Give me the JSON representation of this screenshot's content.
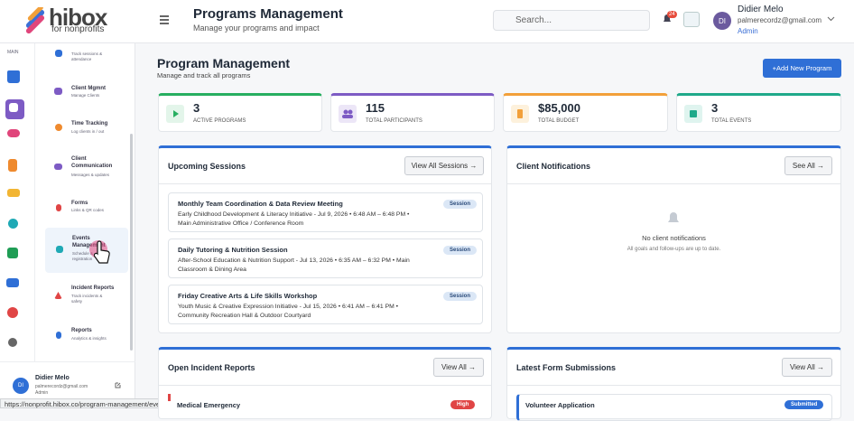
{
  "logo": {
    "name": "hibox",
    "tagline": "for nonprofits"
  },
  "header": {
    "title": "Programs Management",
    "subtitle": "Manage your programs and impact",
    "search_placeholder": "Search...",
    "notification_count": "24",
    "user": {
      "initials": "DI",
      "name": "Didier Melo",
      "email": "palmerecordz@gmail.com",
      "role": "Admin"
    }
  },
  "sidebar": {
    "section": "MAIN",
    "menu": [
      {
        "subtitle": "Track sessions & attendance"
      },
      {
        "title": "Client Mgmnt",
        "subtitle": "Manage Clients"
      },
      {
        "title": "Time Tracking",
        "subtitle": "Log clients in / out"
      },
      {
        "title": "Client Communication",
        "subtitle": "Messages & updates"
      },
      {
        "title": "Forms",
        "subtitle": "Links & QR codes"
      },
      {
        "title": "Events Management",
        "subtitle": "Schedule & registration"
      },
      {
        "title": "Incident Reports",
        "subtitle": "Track incidents & safety"
      },
      {
        "title": "Reports",
        "subtitle": "Analytics & insights"
      }
    ],
    "user": {
      "initials": "DI",
      "name": "Didier Melo",
      "email": "palmerecordz@gmail.com",
      "role": "Admin"
    }
  },
  "status_url": "https://nonprofit.hibox.co/program-management/events",
  "page": {
    "title": "Program Management",
    "subtitle": "Manage and track all programs",
    "add_button": "+Add New Program"
  },
  "stats": [
    {
      "value": 3,
      "label": "ACTIVE PROGRAMS"
    },
    {
      "value": 115,
      "label": "TOTAL PARTICIPANTS"
    },
    {
      "value": "$85,000",
      "label": "TOTAL BUDGET"
    },
    {
      "value": 3,
      "label": "TOTAL EVENTS"
    }
  ],
  "upcoming_sessions": {
    "title": "Upcoming Sessions",
    "button": "View All Sessions →",
    "sessions": [
      {
        "title": "Monthly Team Coordination & Data Review Meeting",
        "details": "Early Childhood Development & Literacy Initiative - Jul 9, 2026 • 6:48 AM – 6:48 PM • Main Administrative Office / Conference Room",
        "badge": "Session"
      },
      {
        "title": "Daily Tutoring & Nutrition Session",
        "details": "After-School Education & Nutrition Support - Jul 13, 2026 • 6:35 AM – 6:32 PM • Main Classroom & Dining Area",
        "badge": "Session"
      },
      {
        "title": "Friday Creative Arts & Life Skills Workshop",
        "details": "Youth Music & Creative Expression Initiative - Jul 15, 2026 • 6:41 AM – 6:41 PM • Community Recreation Hall & Outdoor Courtyard",
        "badge": "Session"
      }
    ]
  },
  "client_notifications": {
    "title": "Client Notifications",
    "button": "See All →",
    "empty_title": "No client notifications",
    "empty_text": "All goals and follow-ups are up to date."
  },
  "incident_reports": {
    "title": "Open Incident Reports",
    "button": "View All →",
    "items": [
      {
        "title": "Medical Emergency",
        "severity": "High"
      }
    ]
  },
  "form_submissions": {
    "title": "Latest Form Submissions",
    "button": "View All →",
    "items": [
      {
        "title": "Volunteer Application",
        "status": "Submitted"
      }
    ]
  }
}
